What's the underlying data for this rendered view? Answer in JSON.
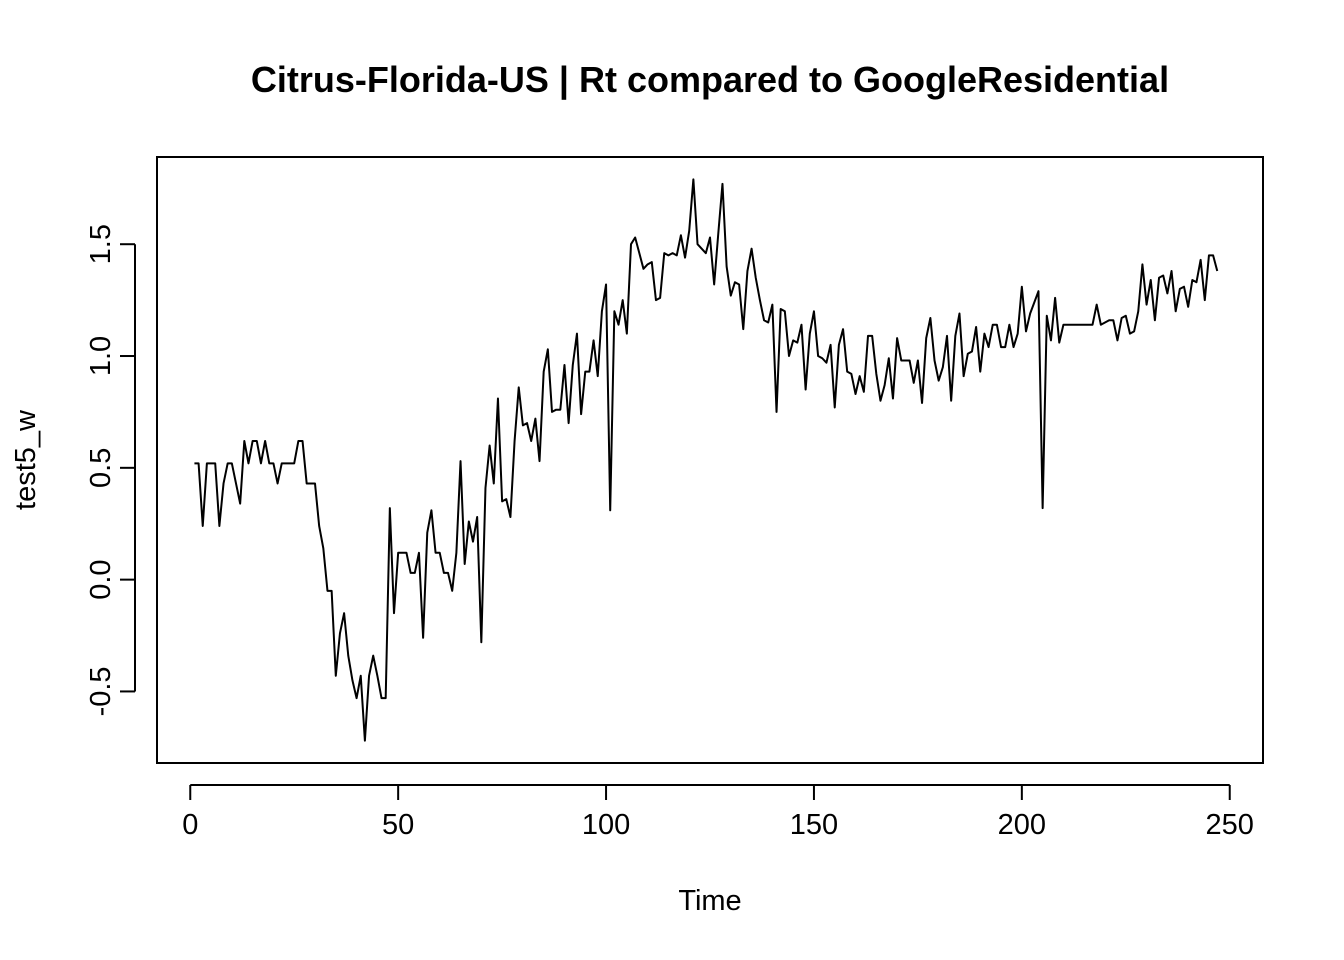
{
  "chart_data": {
    "type": "line",
    "title": "Citrus-Florida-US | Rt compared to GoogleResidential",
    "xlabel": "Time",
    "ylabel": "test5_w",
    "xlim": [
      -8,
      258
    ],
    "ylim": [
      -0.82,
      1.89
    ],
    "xticks": [
      0,
      50,
      100,
      150,
      200,
      250
    ],
    "yticks": [
      -0.5,
      0.0,
      0.5,
      1.0,
      1.5
    ],
    "ytick_labels": [
      "-0.5",
      "0.0",
      "0.5",
      "1.0",
      "1.5"
    ],
    "grid": false,
    "legend": "none",
    "line_color": "#000000",
    "x_start": 1,
    "series": [
      {
        "values": [
          0.52,
          0.52,
          0.24,
          0.52,
          0.52,
          0.52,
          0.24,
          0.43,
          0.52,
          0.52,
          0.43,
          0.34,
          0.62,
          0.52,
          0.62,
          0.62,
          0.52,
          0.62,
          0.52,
          0.52,
          0.43,
          0.52,
          0.52,
          0.52,
          0.52,
          0.62,
          0.62,
          0.43,
          0.43,
          0.43,
          0.24,
          0.14,
          -0.05,
          -0.05,
          -0.43,
          -0.24,
          -0.15,
          -0.34,
          -0.45,
          -0.53,
          -0.43,
          -0.72,
          -0.43,
          -0.34,
          -0.43,
          -0.53,
          -0.53,
          0.32,
          -0.15,
          0.12,
          0.12,
          0.12,
          0.03,
          0.03,
          0.12,
          -0.26,
          0.21,
          0.31,
          0.12,
          0.12,
          0.03,
          0.03,
          -0.05,
          0.12,
          0.53,
          0.07,
          0.26,
          0.17,
          0.28,
          -0.28,
          0.41,
          0.6,
          0.43,
          0.81,
          0.35,
          0.36,
          0.28,
          0.62,
          0.86,
          0.69,
          0.7,
          0.62,
          0.72,
          0.53,
          0.93,
          1.03,
          0.75,
          0.76,
          0.76,
          0.96,
          0.7,
          0.96,
          1.1,
          0.74,
          0.93,
          0.93,
          1.07,
          0.91,
          1.2,
          1.32,
          0.31,
          1.2,
          1.14,
          1.25,
          1.1,
          1.5,
          1.53,
          1.46,
          1.39,
          1.41,
          1.42,
          1.25,
          1.26,
          1.46,
          1.45,
          1.46,
          1.45,
          1.54,
          1.44,
          1.56,
          1.79,
          1.5,
          1.48,
          1.46,
          1.53,
          1.32,
          1.55,
          1.77,
          1.4,
          1.27,
          1.33,
          1.32,
          1.12,
          1.38,
          1.48,
          1.35,
          1.25,
          1.16,
          1.15,
          1.23,
          0.75,
          1.21,
          1.2,
          1.0,
          1.07,
          1.06,
          1.14,
          0.85,
          1.1,
          1.2,
          1.0,
          0.99,
          0.97,
          1.05,
          0.77,
          1.05,
          1.12,
          0.93,
          0.92,
          0.83,
          0.91,
          0.84,
          1.09,
          1.09,
          0.92,
          0.8,
          0.87,
          0.99,
          0.81,
          1.08,
          0.98,
          0.98,
          0.98,
          0.88,
          0.98,
          0.79,
          1.08,
          1.17,
          0.98,
          0.89,
          0.95,
          1.09,
          0.8,
          1.09,
          1.19,
          0.91,
          1.01,
          1.02,
          1.13,
          0.93,
          1.1,
          1.04,
          1.14,
          1.14,
          1.04,
          1.04,
          1.14,
          1.04,
          1.1,
          1.31,
          1.11,
          1.19,
          1.24,
          1.29,
          0.32,
          1.18,
          1.07,
          1.26,
          1.06,
          1.14,
          1.14,
          1.14,
          1.14,
          1.14,
          1.14,
          1.14,
          1.14,
          1.23,
          1.14,
          1.15,
          1.16,
          1.16,
          1.07,
          1.17,
          1.18,
          1.1,
          1.11,
          1.2,
          1.41,
          1.23,
          1.34,
          1.16,
          1.35,
          1.36,
          1.28,
          1.38,
          1.2,
          1.3,
          1.31,
          1.22,
          1.34,
          1.33,
          1.43,
          1.25,
          1.45,
          1.45,
          1.38
        ]
      }
    ]
  }
}
